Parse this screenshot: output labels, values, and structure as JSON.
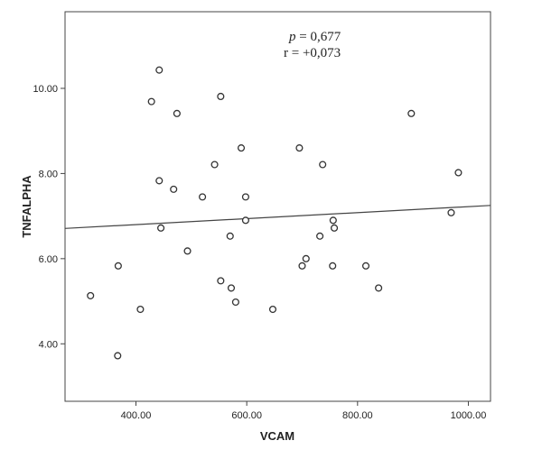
{
  "chart_data": {
    "type": "scatter",
    "xlabel": "VCAM",
    "ylabel": "TNFALPHA",
    "xlim": [
      272,
      1040
    ],
    "ylim": [
      2.65,
      11.8
    ],
    "xticks": [
      400,
      600,
      800,
      1000
    ],
    "yticks": [
      4,
      6,
      8,
      10
    ],
    "xtick_labels": [
      "400.00",
      "600.00",
      "800.00",
      "1000.00"
    ],
    "ytick_labels": [
      "4.00",
      "6.00",
      "8.00",
      "10.00"
    ],
    "grid": false,
    "legend": "none",
    "points": [
      {
        "x": 318,
        "y": 5.13
      },
      {
        "x": 368,
        "y": 5.83
      },
      {
        "x": 367,
        "y": 3.72
      },
      {
        "x": 408,
        "y": 4.81
      },
      {
        "x": 428,
        "y": 9.69
      },
      {
        "x": 442,
        "y": 10.43
      },
      {
        "x": 442,
        "y": 7.83
      },
      {
        "x": 445,
        "y": 6.72
      },
      {
        "x": 468,
        "y": 7.63
      },
      {
        "x": 474,
        "y": 9.41
      },
      {
        "x": 493,
        "y": 6.18
      },
      {
        "x": 520,
        "y": 7.45
      },
      {
        "x": 542,
        "y": 8.21
      },
      {
        "x": 553,
        "y": 9.81
      },
      {
        "x": 553,
        "y": 5.48
      },
      {
        "x": 570,
        "y": 6.53
      },
      {
        "x": 572,
        "y": 5.31
      },
      {
        "x": 580,
        "y": 4.98
      },
      {
        "x": 590,
        "y": 8.6
      },
      {
        "x": 598,
        "y": 7.45
      },
      {
        "x": 598,
        "y": 6.9
      },
      {
        "x": 647,
        "y": 4.81
      },
      {
        "x": 695,
        "y": 8.6
      },
      {
        "x": 700,
        "y": 5.83
      },
      {
        "x": 707,
        "y": 6.0
      },
      {
        "x": 732,
        "y": 6.53
      },
      {
        "x": 737,
        "y": 8.21
      },
      {
        "x": 756,
        "y": 6.9
      },
      {
        "x": 758,
        "y": 6.72
      },
      {
        "x": 755,
        "y": 5.83
      },
      {
        "x": 815,
        "y": 5.83
      },
      {
        "x": 838,
        "y": 5.31
      },
      {
        "x": 897,
        "y": 9.41
      },
      {
        "x": 969,
        "y": 7.08
      },
      {
        "x": 982,
        "y": 8.02
      }
    ],
    "fit_line": {
      "x": [
        272,
        1040
      ],
      "y": [
        6.71,
        7.25
      ]
    },
    "annotations": {
      "p_symbol": "p",
      "p_rest": " = 0,677",
      "r_text": "r = +0,073"
    }
  }
}
